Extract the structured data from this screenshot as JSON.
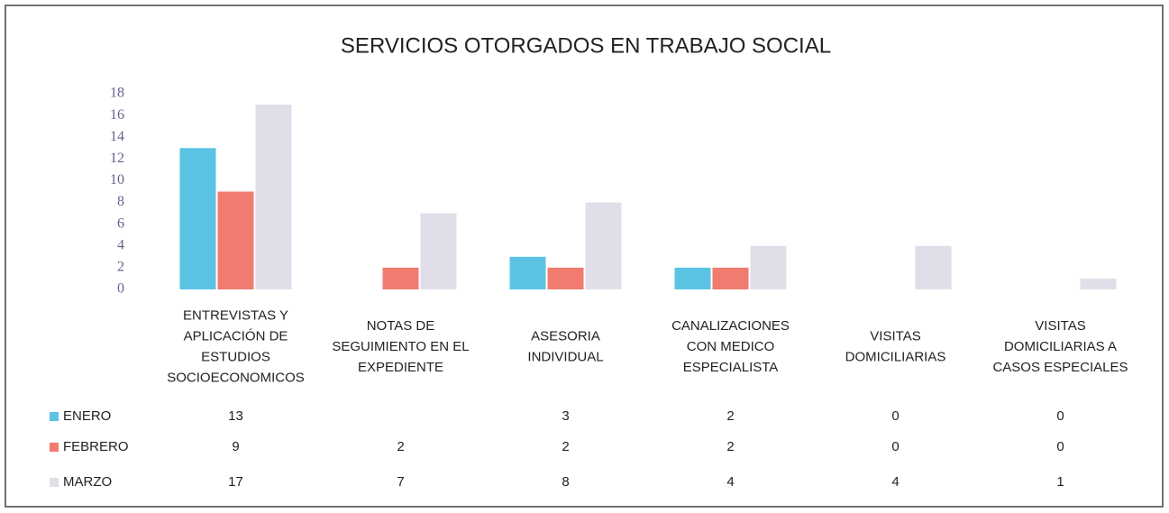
{
  "chart_data": {
    "type": "bar",
    "title": "SERVICIOS OTORGADOS EN TRABAJO SOCIAL",
    "categories": [
      [
        "ENTREVISTAS Y",
        "APLICACIÓN DE",
        "ESTUDIOS",
        "SOCIOECONOMICOS"
      ],
      [
        "NOTAS DE",
        "SEGUIMIENTO EN EL",
        "EXPEDIENTE"
      ],
      [
        "ASESORIA",
        "INDIVIDUAL"
      ],
      [
        "CANALIZACIONES",
        "CON MEDICO",
        "ESPECIALISTA"
      ],
      [
        "VISITAS",
        "DOMICILIARIAS"
      ],
      [
        "VISITAS",
        "DOMICILIARIAS A",
        "CASOS ESPECIALES"
      ]
    ],
    "series": [
      {
        "name": "ENERO",
        "color": "#5bc3e3",
        "values": [
          13,
          null,
          3,
          2,
          0,
          0
        ]
      },
      {
        "name": "FEBRERO",
        "color": "#f07b6e",
        "values": [
          9,
          2,
          2,
          2,
          0,
          0
        ]
      },
      {
        "name": "MARZO",
        "color": "#e2dee9",
        "values": [
          17,
          7,
          8,
          4,
          4,
          1
        ]
      }
    ],
    "ylim": [
      0,
      18
    ],
    "yticks": [
      0,
      2,
      4,
      6,
      8,
      10,
      12,
      14,
      16,
      18
    ],
    "grid": false
  }
}
